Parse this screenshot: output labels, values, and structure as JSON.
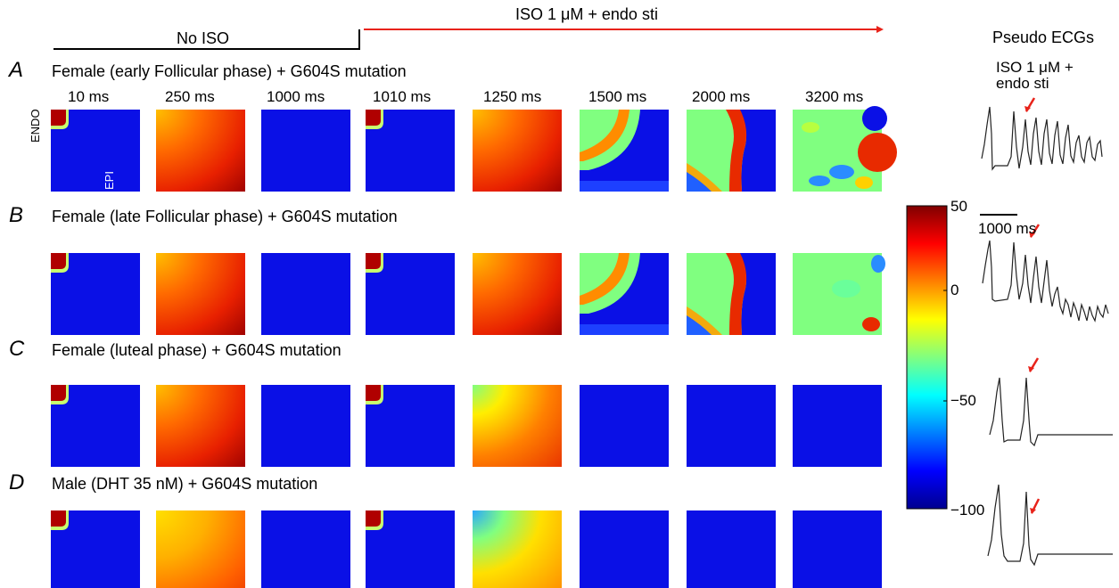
{
  "protocol": {
    "pre_label": "No ISO",
    "post_label": "ISO 1 μM + endo sti",
    "line_colors": {
      "pre": "#000000",
      "post": "#e8231a"
    }
  },
  "timepoints": [
    "10 ms",
    "250 ms",
    "1000 ms",
    "1010 ms",
    "1250 ms",
    "1500 ms",
    "2000 ms",
    "3200 ms"
  ],
  "tissue_labels": {
    "endo": "ENDO",
    "epi": "EPI"
  },
  "rows": [
    {
      "letter": "A",
      "title": "Female (early Follicular phase) + G604S mutation",
      "maps": [
        "corner",
        "depol",
        "rest",
        "corner",
        "depol",
        "wave-ring",
        "wave-band",
        "chaotic"
      ]
    },
    {
      "letter": "B",
      "title": "Female (late Follicular phase) + G604S mutation",
      "maps": [
        "corner",
        "depol",
        "rest",
        "corner",
        "depol",
        "wave-ring",
        "wave-band",
        "chaotic-b"
      ]
    },
    {
      "letter": "C",
      "title": "Female (luteal phase) + G604S mutation",
      "maps": [
        "corner",
        "depol",
        "rest",
        "corner",
        "depol-c",
        "rest",
        "rest",
        "rest"
      ]
    },
    {
      "letter": "D",
      "title": "Male (DHT 35 nM) + G604S mutation",
      "maps": [
        "corner",
        "depol-d",
        "rest",
        "corner",
        "depol-dd",
        "rest",
        "rest",
        "rest"
      ]
    }
  ],
  "colorbar": {
    "ticks": [
      "50",
      "0",
      "−50",
      "−100"
    ],
    "range": [
      -100,
      50
    ]
  },
  "ecg": {
    "title": "Pseudo ECGs",
    "annotation": "ISO 1 μM +\nendo sti",
    "scale_label": "1000 ms",
    "arrow_color": "#e8231a"
  }
}
